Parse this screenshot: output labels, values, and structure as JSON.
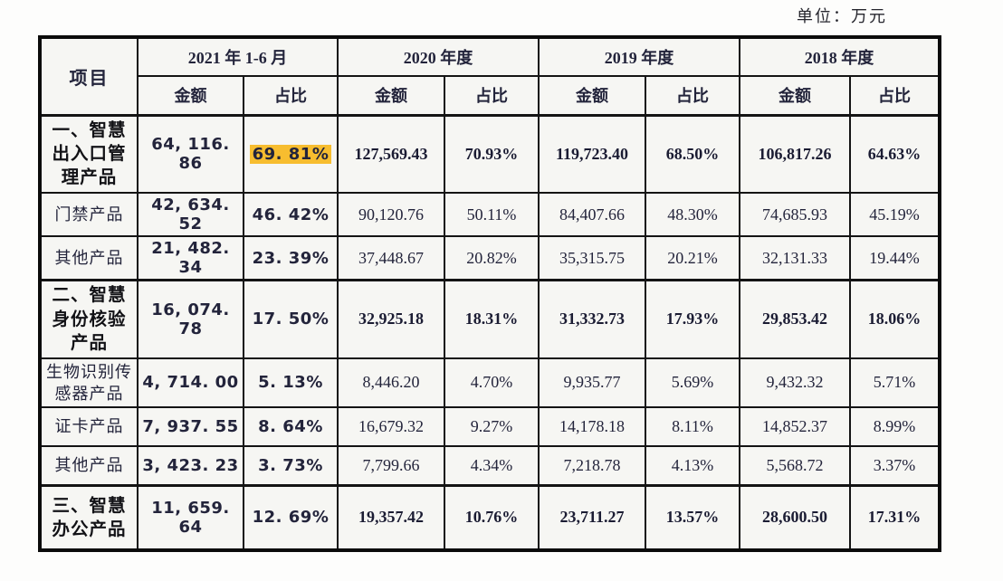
{
  "unit_label": "单位：万元",
  "colors": {
    "highlight": "#f7bd2f",
    "border": "#0b0b0b",
    "cell_background": "#f6f6f3",
    "value_text": "#23243b"
  },
  "table": {
    "corner_header": "项目",
    "year_groups": [
      "2021 年 1-6 月",
      "2020 年度",
      "2019 年度",
      "2018 年度"
    ],
    "sub_headers": [
      "金额",
      "占比"
    ],
    "highlighted_cell": {
      "row": 0,
      "col": 1
    },
    "rows": [
      {
        "label": "一、智慧出入口管理产品",
        "category": true,
        "values": [
          "64, 116. 86",
          "69. 81%",
          "127,569.43",
          "70.93%",
          "119,723.40",
          "68.50%",
          "106,817.26",
          "64.63%"
        ]
      },
      {
        "label": "门禁产品",
        "category": false,
        "values": [
          "42, 634. 52",
          "46. 42%",
          "90,120.76",
          "50.11%",
          "84,407.66",
          "48.30%",
          "74,685.93",
          "45.19%"
        ]
      },
      {
        "label": "其他产品",
        "category": false,
        "values": [
          "21, 482. 34",
          "23. 39%",
          "37,448.67",
          "20.82%",
          "35,315.75",
          "20.21%",
          "32,131.33",
          "19.44%"
        ]
      },
      {
        "label": "二、智慧身份核验产品",
        "category": true,
        "values": [
          "16, 074. 78",
          "17. 50%",
          "32,925.18",
          "18.31%",
          "31,332.73",
          "17.93%",
          "29,853.42",
          "18.06%"
        ]
      },
      {
        "label": "生物识别传感器产品",
        "category": false,
        "values": [
          "4, 714. 00",
          "5. 13%",
          "8,446.20",
          "4.70%",
          "9,935.77",
          "5.69%",
          "9,432.32",
          "5.71%"
        ]
      },
      {
        "label": "证卡产品",
        "category": false,
        "values": [
          "7, 937. 55",
          "8. 64%",
          "16,679.32",
          "9.27%",
          "14,178.18",
          "8.11%",
          "14,852.37",
          "8.99%"
        ]
      },
      {
        "label": "其他产品",
        "category": false,
        "values": [
          "3, 423. 23",
          "3. 73%",
          "7,799.66",
          "4.34%",
          "7,218.78",
          "4.13%",
          "5,568.72",
          "3.37%"
        ]
      },
      {
        "label": "三、智慧办公产品",
        "category": true,
        "values": [
          "11, 659. 64",
          "12. 69%",
          "19,357.42",
          "10.76%",
          "23,711.27",
          "13.57%",
          "28,600.50",
          "17.31%"
        ]
      }
    ]
  }
}
